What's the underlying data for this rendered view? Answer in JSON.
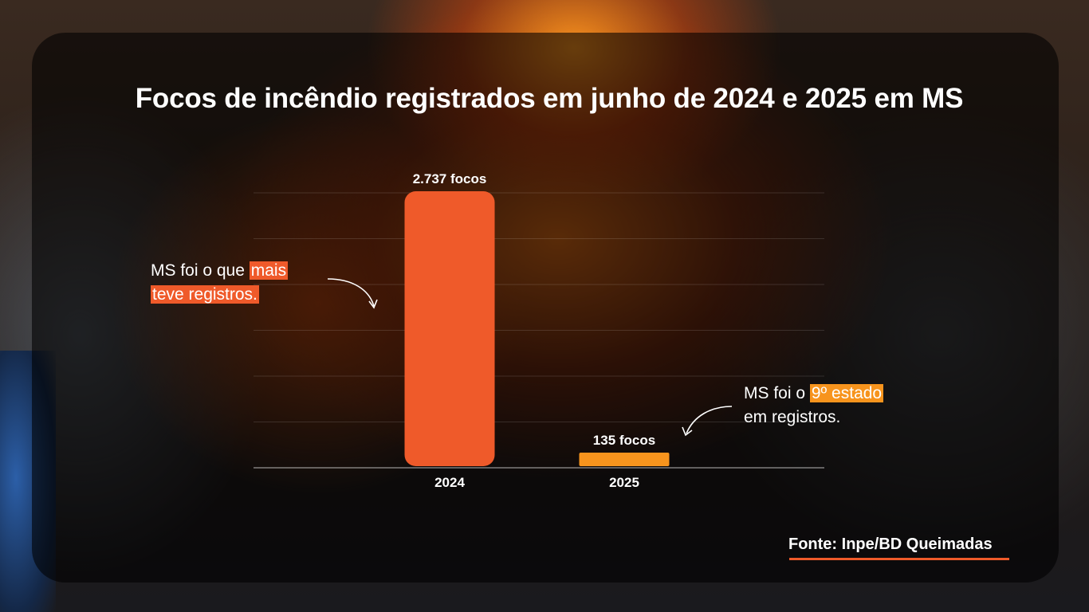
{
  "title": "Focos de incêndio registrados em junho de 2024 e 2025 em MS",
  "chart_data": {
    "type": "bar",
    "categories": [
      "2024",
      "2025"
    ],
    "values": [
      2737,
      135
    ],
    "data_labels": [
      "2.737 focos",
      "135 focos"
    ],
    "ylim": [
      0,
      2737
    ],
    "grid": true,
    "bar_colors": [
      "#ef5a2a",
      "#f7941d"
    ]
  },
  "annotations": {
    "left": {
      "text_before": "MS foi o que ",
      "highlight_1": "mais",
      "highlight_2": "teve registros."
    },
    "right": {
      "text_before": "MS foi o ",
      "highlight": "9º estado",
      "text_after": "em registros."
    }
  },
  "source": "Fonte: Inpe/BD Queimadas",
  "colors": {
    "accent": "#ef5a2a",
    "accent_2": "#f7941d",
    "text": "#ffffff"
  }
}
